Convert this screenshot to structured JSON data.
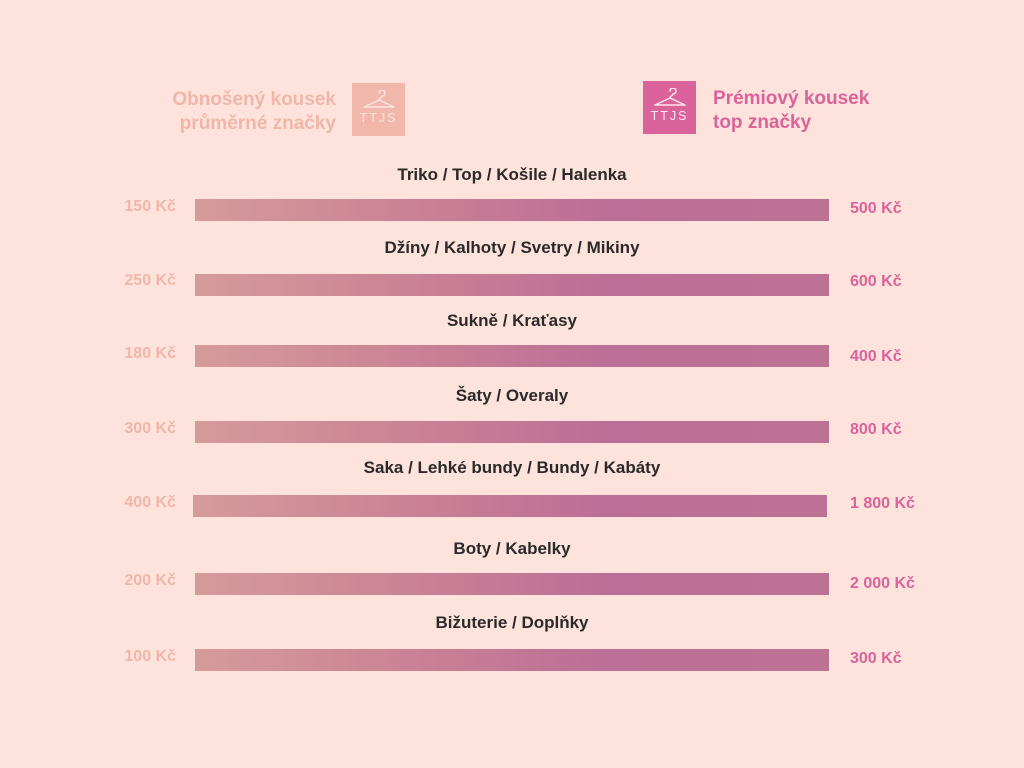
{
  "header": {
    "left_line1": "Obnošený kousek",
    "left_line2": "průměrné značky",
    "right_line1": "Prémiový kousek",
    "right_line2": "top značky",
    "logo_text": "TTJS",
    "logo_icon": "hanger-icon"
  },
  "colors": {
    "background": "#fde3dc",
    "left_accent": "#f1b7ab",
    "right_accent": "#d9639a",
    "bar_start": "#d59b9a",
    "bar_end": "#bd7295"
  },
  "rows": [
    {
      "category": "Triko / Top / Košile / Halenka",
      "low": "150 Kč",
      "high": "500 Kč"
    },
    {
      "category": "Džíny / Kalhoty / Svetry / Mikiny",
      "low": "250 Kč",
      "high": "600 Kč"
    },
    {
      "category": "Sukně / Kraťasy",
      "low": "180 Kč",
      "high": "400 Kč"
    },
    {
      "category": "Šaty / Overaly",
      "low": "300 Kč",
      "high": "800 Kč"
    },
    {
      "category": "Saka / Lehké bundy / Bundy / Kabáty",
      "low": "400 Kč",
      "high": "1 800 Kč"
    },
    {
      "category": "Boty / Kabelky",
      "low": "200 Kč",
      "high": "2 000 Kč"
    },
    {
      "category": "Bižuterie / Doplňky",
      "low": "100 Kč",
      "high": "300 Kč"
    }
  ]
}
